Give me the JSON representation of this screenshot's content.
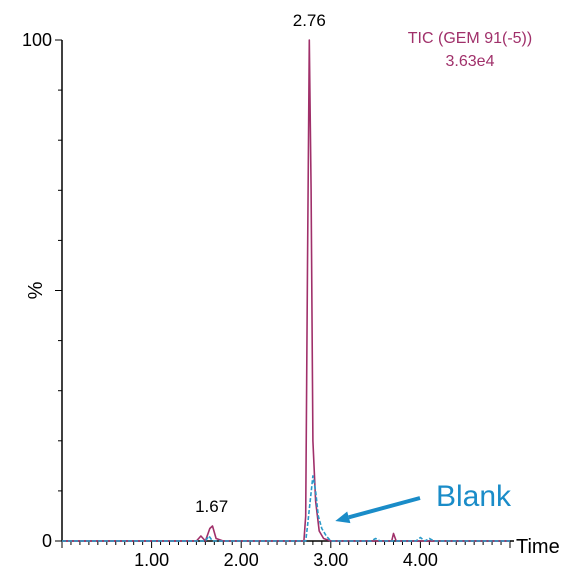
{
  "chart_data": {
    "type": "line",
    "title": "TIC (GEM 91(-5))",
    "subtitle": "3.63e4",
    "xlabel": "Time",
    "ylabel": "%",
    "xlim": [
      0,
      5.0
    ],
    "ylim": [
      0,
      100
    ],
    "xticks": [
      "1.00",
      "2.00",
      "3.00",
      "4.00"
    ],
    "xtick_values": [
      1.0,
      2.0,
      3.0,
      4.0
    ],
    "yticks": [
      "0",
      "100"
    ],
    "ytick_values": [
      0,
      100
    ],
    "grid": false,
    "peak_labels": [
      {
        "text": "2.76",
        "x": 2.76,
        "y": 100
      },
      {
        "text": "1.67",
        "x": 1.67,
        "y": 3
      }
    ],
    "annotation": {
      "text": "Blank",
      "points_to_x": 3.05,
      "points_to_y": 4
    },
    "series": [
      {
        "color": "#a0306a",
        "style": "solid",
        "points": [
          [
            0.0,
            0
          ],
          [
            1.5,
            0
          ],
          [
            1.55,
            1
          ],
          [
            1.6,
            0
          ],
          [
            1.65,
            2.5
          ],
          [
            1.68,
            3
          ],
          [
            1.72,
            0.5
          ],
          [
            1.8,
            0
          ],
          [
            2.7,
            0
          ],
          [
            2.72,
            5
          ],
          [
            2.74,
            55
          ],
          [
            2.76,
            100
          ],
          [
            2.78,
            70
          ],
          [
            2.8,
            20
          ],
          [
            2.83,
            8
          ],
          [
            2.87,
            2
          ],
          [
            2.92,
            0.5
          ],
          [
            3.0,
            0
          ],
          [
            3.68,
            0
          ],
          [
            3.7,
            1.5
          ],
          [
            3.73,
            0
          ],
          [
            5.0,
            0
          ]
        ]
      },
      {
        "color": "#2a9ac9",
        "style": "dashed",
        "points": [
          [
            0.0,
            0
          ],
          [
            1.6,
            0
          ],
          [
            1.64,
            1
          ],
          [
            1.68,
            0
          ],
          [
            2.72,
            0
          ],
          [
            2.74,
            3
          ],
          [
            2.77,
            8
          ],
          [
            2.8,
            13
          ],
          [
            2.83,
            10
          ],
          [
            2.86,
            5
          ],
          [
            2.9,
            2.5
          ],
          [
            2.95,
            1
          ],
          [
            3.0,
            0
          ],
          [
            3.45,
            0
          ],
          [
            3.5,
            0.5
          ],
          [
            3.55,
            0
          ],
          [
            3.95,
            0
          ],
          [
            4.0,
            0.7
          ],
          [
            4.05,
            0
          ],
          [
            4.1,
            0.5
          ],
          [
            4.15,
            0
          ],
          [
            5.0,
            0
          ]
        ]
      }
    ]
  },
  "colors": {
    "tic_series": "#a0306a",
    "blank_series": "#2a9ac9",
    "legend": "#a0306a",
    "annotation": "#1a8cc8",
    "axis": "#000000"
  }
}
